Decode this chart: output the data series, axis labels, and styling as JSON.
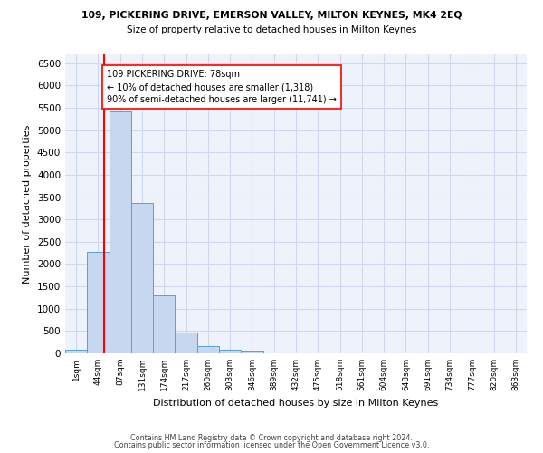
{
  "title1": "109, PICKERING DRIVE, EMERSON VALLEY, MILTON KEYNES, MK4 2EQ",
  "title2": "Size of property relative to detached houses in Milton Keynes",
  "xlabel": "Distribution of detached houses by size in Milton Keynes",
  "ylabel": "Number of detached properties",
  "footer1": "Contains HM Land Registry data © Crown copyright and database right 2024.",
  "footer2": "Contains public sector information licensed under the Open Government Licence v3.0.",
  "bar_labels": [
    "1sqm",
    "44sqm",
    "87sqm",
    "131sqm",
    "174sqm",
    "217sqm",
    "260sqm",
    "303sqm",
    "346sqm",
    "389sqm",
    "432sqm",
    "475sqm",
    "518sqm",
    "561sqm",
    "604sqm",
    "648sqm",
    "691sqm",
    "734sqm",
    "777sqm",
    "820sqm",
    "863sqm"
  ],
  "bar_values": [
    75,
    2280,
    5420,
    3370,
    1290,
    470,
    155,
    80,
    55,
    0,
    0,
    0,
    0,
    0,
    0,
    0,
    0,
    0,
    0,
    0,
    0
  ],
  "bar_color": "#c5d8f0",
  "bar_edge_color": "#5a9fd4",
  "annotation_text": "109 PICKERING DRIVE: 78sqm\n← 10% of detached houses are smaller (1,318)\n90% of semi-detached houses are larger (11,741) →",
  "ylim": [
    0,
    6700
  ],
  "yticks": [
    0,
    500,
    1000,
    1500,
    2000,
    2500,
    3000,
    3500,
    4000,
    4500,
    5000,
    5500,
    6000,
    6500
  ],
  "grid_color": "#d0d8ee",
  "background_color": "#edf2fb"
}
